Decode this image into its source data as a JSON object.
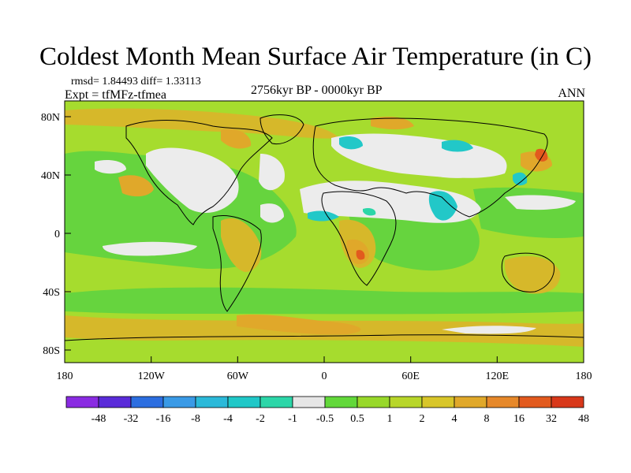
{
  "figure": {
    "title": "Coldest Month Mean Surface Air Temperature (in C)",
    "stats": "rmsd= 1.84493 diff= 1.33113",
    "experiment": "Expt = tfMFz-tfmea",
    "period": "2756kyr BP - 0000kyr BP",
    "season": "ANN"
  },
  "map": {
    "lon_ticks": [
      "180",
      "120W",
      "60W",
      "0",
      "60E",
      "120E",
      "180"
    ],
    "lat_ticks": [
      "80N",
      "40N",
      "0",
      "40S",
      "80S"
    ],
    "background_color": "#a6dc2e"
  },
  "colorbar": {
    "labels": [
      "-48",
      "-32",
      "-16",
      "-8",
      "-4",
      "-2",
      "-1",
      "-0.5",
      "0.5",
      "1",
      "2",
      "4",
      "8",
      "16",
      "32",
      "48"
    ],
    "colors": [
      "#8a2be2",
      "#5a2bd9",
      "#2c6ee0",
      "#3a9ae6",
      "#2bb9d9",
      "#20c8c8",
      "#2cd6a8",
      "#e6e6e6",
      "#62d83a",
      "#98d82a",
      "#b8d62a",
      "#d8c62a",
      "#e0a82a",
      "#e6882a",
      "#e25a1e",
      "#d8381a"
    ]
  }
}
